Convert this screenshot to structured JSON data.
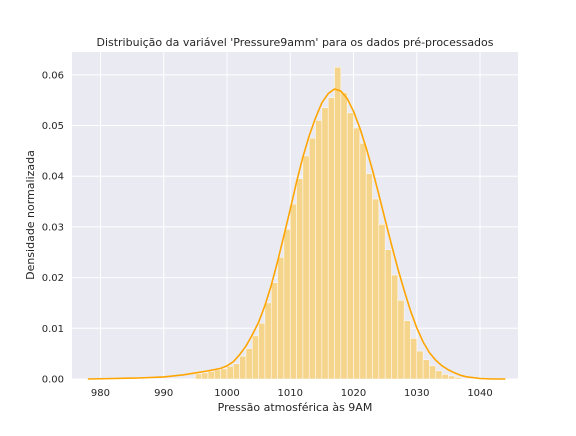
{
  "chart_data": {
    "type": "bar",
    "title": "Distribuição da variável 'Pressure9amm' para os dados pré-processados",
    "xlabel": "Pressão atmosférica às 9AM",
    "ylabel": "Densidade normalizada",
    "xlim": [
      975.5,
      1046
    ],
    "ylim": [
      0,
      0.0645
    ],
    "x_ticks": [
      980,
      990,
      1000,
      1010,
      1020,
      1030,
      1040
    ],
    "x_tick_labels": [
      "980",
      "990",
      "1000",
      "1010",
      "1020",
      "1030",
      "1040"
    ],
    "y_ticks": [
      0.0,
      0.01,
      0.02,
      0.03,
      0.04,
      0.05,
      0.06
    ],
    "y_tick_labels": [
      "0.00",
      "0.01",
      "0.02",
      "0.03",
      "0.04",
      "0.05",
      "0.06"
    ],
    "grid": true,
    "colors": {
      "plot_background": "#eaeaf2",
      "grid": "#ffffff",
      "bars": "#f5d48c",
      "kde_line": "#ffa500"
    },
    "histogram": {
      "bin_width": 1.0,
      "bin_starts": [
        995,
        996,
        997,
        998,
        999,
        1000,
        1001,
        1002,
        1003,
        1004,
        1005,
        1006,
        1007,
        1008,
        1009,
        1010,
        1011,
        1012,
        1013,
        1014,
        1015,
        1016,
        1017,
        1018,
        1019,
        1020,
        1021,
        1022,
        1023,
        1024,
        1025,
        1026,
        1027,
        1028,
        1029,
        1030,
        1031,
        1032,
        1033,
        1034,
        1035,
        1036
      ],
      "densities": [
        0.001,
        0.0012,
        0.0015,
        0.0018,
        0.002,
        0.0025,
        0.003,
        0.0045,
        0.006,
        0.0085,
        0.011,
        0.015,
        0.019,
        0.024,
        0.0295,
        0.0345,
        0.0395,
        0.044,
        0.0475,
        0.051,
        0.0535,
        0.0555,
        0.0615,
        0.0565,
        0.0525,
        0.0495,
        0.0465,
        0.0405,
        0.0355,
        0.0305,
        0.0255,
        0.0205,
        0.0155,
        0.0115,
        0.008,
        0.0055,
        0.0038,
        0.0026,
        0.0016,
        0.0009,
        0.0006,
        0.0003
      ]
    },
    "kde": {
      "x": [
        978,
        982,
        986,
        990,
        993,
        995,
        997,
        999,
        1000,
        1001,
        1002,
        1003,
        1004,
        1005,
        1006,
        1007,
        1008,
        1009,
        1010,
        1011,
        1012,
        1013,
        1014,
        1015,
        1016,
        1017,
        1018,
        1019,
        1020,
        1021,
        1022,
        1023,
        1024,
        1025,
        1026,
        1027,
        1028,
        1029,
        1030,
        1031,
        1032,
        1033,
        1034,
        1035,
        1036,
        1037,
        1038,
        1040,
        1042,
        1044
      ],
      "y": [
        0.0,
        0.0001,
        0.0002,
        0.0004,
        0.0008,
        0.0012,
        0.0016,
        0.0021,
        0.0026,
        0.0034,
        0.0048,
        0.0065,
        0.0087,
        0.0112,
        0.0145,
        0.0185,
        0.0232,
        0.0283,
        0.0335,
        0.0389,
        0.0438,
        0.048,
        0.0515,
        0.0545,
        0.0563,
        0.0572,
        0.0568,
        0.0553,
        0.0528,
        0.0495,
        0.0456,
        0.0412,
        0.0364,
        0.0314,
        0.0265,
        0.0218,
        0.0175,
        0.0135,
        0.0101,
        0.0073,
        0.0052,
        0.0037,
        0.0026,
        0.0018,
        0.0012,
        0.0007,
        0.0004,
        0.0001,
        0.0,
        0.0
      ]
    }
  }
}
